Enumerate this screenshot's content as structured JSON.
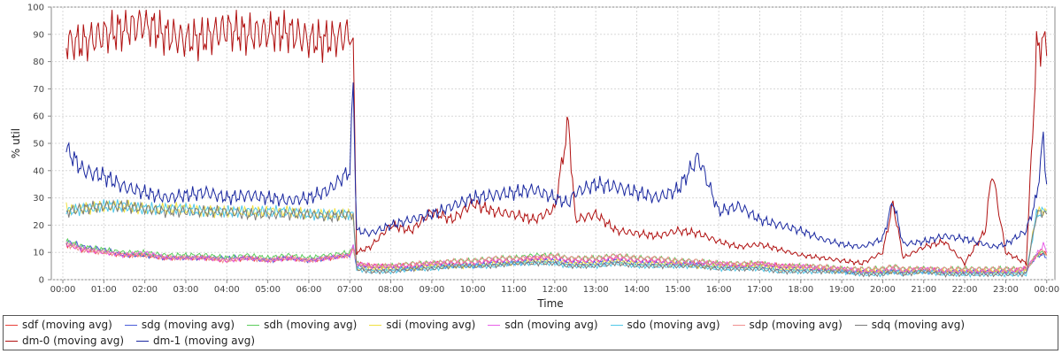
{
  "chart_data": {
    "type": "line",
    "xlabel": "Time",
    "ylabel": "% util",
    "ylim": [
      0,
      100
    ],
    "yticks": [
      0,
      10,
      20,
      30,
      40,
      50,
      60,
      70,
      80,
      90,
      100
    ],
    "xlim": [
      0,
      24.2
    ],
    "xticks": [
      {
        "t": 0,
        "label": "00:00"
      },
      {
        "t": 1,
        "label": "01:00"
      },
      {
        "t": 2,
        "label": "02:00"
      },
      {
        "t": 3,
        "label": "03:00"
      },
      {
        "t": 4,
        "label": "04:00"
      },
      {
        "t": 5,
        "label": "05:00"
      },
      {
        "t": 6,
        "label": "06:00"
      },
      {
        "t": 7,
        "label": "07:00"
      },
      {
        "t": 8,
        "label": "08:00"
      },
      {
        "t": 9,
        "label": "09:00"
      },
      {
        "t": 10,
        "label": "10:00"
      },
      {
        "t": 11,
        "label": "11:00"
      },
      {
        "t": 12,
        "label": "12:00"
      },
      {
        "t": 13,
        "label": "13:00"
      },
      {
        "t": 14,
        "label": "14:00"
      },
      {
        "t": 15,
        "label": "15:00"
      },
      {
        "t": 16,
        "label": "16:00"
      },
      {
        "t": 17,
        "label": "17:00"
      },
      {
        "t": 18,
        "label": "18:00"
      },
      {
        "t": 19,
        "label": "19:00"
      },
      {
        "t": 20,
        "label": "20:00"
      },
      {
        "t": 21,
        "label": "21:00"
      },
      {
        "t": 22,
        "label": "22:00"
      },
      {
        "t": 23,
        "label": "23:00"
      },
      {
        "t": 24,
        "label": "00:00"
      }
    ],
    "grid": true,
    "legend_position": "bottom",
    "x": [
      "00:05",
      "00:30",
      "01:00",
      "01:30",
      "02:00",
      "02:30",
      "03:00",
      "03:30",
      "04:00",
      "04:30",
      "05:00",
      "05:30",
      "06:00",
      "06:30",
      "07:00",
      "07:05",
      "07:10",
      "07:30",
      "08:00",
      "08:30",
      "09:00",
      "09:30",
      "10:00",
      "10:30",
      "11:00",
      "11:30",
      "12:00",
      "12:20",
      "12:30",
      "13:00",
      "13:30",
      "14:00",
      "14:30",
      "15:00",
      "15:30",
      "16:00",
      "16:30",
      "17:00",
      "17:30",
      "18:00",
      "18:30",
      "19:00",
      "19:30",
      "20:00",
      "20:15",
      "20:30",
      "21:00",
      "21:30",
      "22:00",
      "22:30",
      "22:40",
      "23:00",
      "23:30",
      "23:45",
      "23:55",
      "24:00"
    ],
    "series": [
      {
        "name": "sdf (moving avg)",
        "color": "#e8403a",
        "values": [
          13,
          11,
          10,
          9,
          9,
          8,
          8,
          8,
          7,
          8,
          7,
          8,
          7,
          8,
          9,
          12,
          6,
          5,
          5,
          5,
          6,
          6,
          6,
          7,
          7,
          8,
          8,
          7,
          7,
          7,
          8,
          7,
          7,
          6,
          6,
          6,
          5,
          6,
          5,
          5,
          4,
          4,
          3,
          3,
          4,
          3,
          4,
          3,
          3,
          3,
          3,
          3,
          4,
          9,
          10,
          9
        ]
      },
      {
        "name": "sdg (moving avg)",
        "color": "#4a5cd8",
        "values": [
          14,
          12,
          11,
          9,
          9,
          8,
          8,
          8,
          8,
          8,
          7,
          8,
          7,
          8,
          9,
          12,
          5,
          4,
          4,
          4,
          5,
          5,
          5,
          6,
          6,
          7,
          7,
          6,
          6,
          6,
          7,
          6,
          6,
          6,
          6,
          5,
          5,
          5,
          4,
          4,
          4,
          3,
          3,
          3,
          3,
          3,
          3,
          3,
          3,
          3,
          3,
          3,
          3,
          9,
          9,
          8
        ]
      },
      {
        "name": "sdh (moving avg)",
        "color": "#5ccc5c",
        "values": [
          14,
          12,
          11,
          10,
          10,
          9,
          9,
          9,
          8,
          9,
          8,
          9,
          8,
          9,
          10,
          12,
          6,
          5,
          5,
          6,
          6,
          7,
          7,
          8,
          8,
          9,
          9,
          8,
          8,
          8,
          9,
          8,
          8,
          7,
          7,
          6,
          6,
          6,
          5,
          5,
          5,
          4,
          4,
          4,
          5,
          4,
          4,
          4,
          4,
          4,
          4,
          4,
          4,
          9,
          10,
          9
        ]
      },
      {
        "name": "sdi (moving avg)",
        "color": "#f0e040",
        "values": [
          26,
          26,
          27,
          27,
          26,
          26,
          26,
          25,
          25,
          25,
          25,
          25,
          24,
          24,
          24,
          24,
          4,
          4,
          4,
          4,
          5,
          5,
          5,
          6,
          6,
          7,
          7,
          6,
          6,
          6,
          7,
          6,
          6,
          6,
          5,
          5,
          5,
          5,
          4,
          4,
          4,
          3,
          3,
          3,
          3,
          3,
          3,
          3,
          3,
          3,
          3,
          3,
          3,
          24,
          26,
          25
        ]
      },
      {
        "name": "sdn (moving avg)",
        "color": "#e860e8",
        "values": [
          13,
          11,
          10,
          9,
          10,
          8,
          8,
          8,
          7,
          8,
          7,
          8,
          7,
          8,
          9,
          12,
          6,
          5,
          5,
          5,
          6,
          6,
          6,
          7,
          7,
          8,
          8,
          7,
          7,
          7,
          8,
          7,
          7,
          6,
          6,
          6,
          5,
          6,
          5,
          5,
          4,
          4,
          3,
          3,
          4,
          3,
          4,
          3,
          3,
          3,
          3,
          3,
          4,
          9,
          13,
          10
        ]
      },
      {
        "name": "sdo (moving avg)",
        "color": "#50c8e8",
        "values": [
          25,
          26,
          27,
          27,
          26,
          26,
          26,
          25,
          25,
          25,
          25,
          25,
          24,
          24,
          24,
          24,
          4,
          3,
          3,
          4,
          4,
          5,
          5,
          5,
          6,
          6,
          6,
          5,
          5,
          5,
          6,
          5,
          5,
          5,
          5,
          4,
          4,
          4,
          3,
          3,
          3,
          3,
          2,
          2,
          3,
          2,
          3,
          2,
          2,
          2,
          2,
          2,
          2,
          24,
          25,
          25
        ]
      },
      {
        "name": "sdp (moving avg)",
        "color": "#f09090",
        "values": [
          13,
          11,
          10,
          9,
          9,
          8,
          8,
          8,
          7,
          8,
          7,
          8,
          7,
          8,
          9,
          12,
          6,
          5,
          5,
          6,
          6,
          7,
          7,
          8,
          8,
          8,
          9,
          8,
          8,
          8,
          9,
          8,
          8,
          7,
          7,
          6,
          6,
          6,
          5,
          5,
          5,
          4,
          4,
          4,
          5,
          4,
          4,
          4,
          4,
          4,
          4,
          4,
          4,
          9,
          11,
          9
        ]
      },
      {
        "name": "sdq (moving avg)",
        "color": "#7b7b7b",
        "values": [
          25,
          26,
          27,
          27,
          26,
          25,
          25,
          25,
          25,
          24,
          24,
          24,
          24,
          23,
          24,
          24,
          4,
          3,
          3,
          4,
          4,
          5,
          5,
          5,
          6,
          6,
          6,
          5,
          5,
          5,
          6,
          5,
          5,
          5,
          5,
          4,
          4,
          4,
          3,
          3,
          3,
          3,
          2,
          2,
          3,
          2,
          3,
          2,
          2,
          2,
          2,
          2,
          2,
          24,
          25,
          24
        ]
      },
      {
        "name": "dm-0 (moving avg)",
        "color": "#b01010",
        "values": [
          87,
          87,
          90,
          92,
          94,
          90,
          88,
          89,
          92,
          90,
          91,
          91,
          88,
          88,
          90,
          86,
          10,
          12,
          20,
          18,
          25,
          22,
          28,
          25,
          24,
          22,
          26,
          58,
          22,
          24,
          18,
          17,
          16,
          18,
          17,
          14,
          12,
          13,
          11,
          9,
          8,
          7,
          6,
          10,
          28,
          8,
          12,
          14,
          6,
          18,
          40,
          10,
          6,
          84,
          88,
          82
        ]
      },
      {
        "name": "dm-1 (moving avg)",
        "color": "#1a28a0",
        "values": [
          48,
          40,
          38,
          34,
          32,
          30,
          31,
          32,
          30,
          31,
          30,
          29,
          30,
          33,
          40,
          72,
          18,
          17,
          20,
          22,
          24,
          27,
          30,
          31,
          32,
          33,
          30,
          28,
          32,
          35,
          34,
          32,
          30,
          33,
          45,
          25,
          27,
          22,
          20,
          18,
          15,
          13,
          12,
          15,
          29,
          13,
          14,
          16,
          15,
          13,
          12,
          13,
          18,
          30,
          52,
          35
        ]
      }
    ]
  }
}
